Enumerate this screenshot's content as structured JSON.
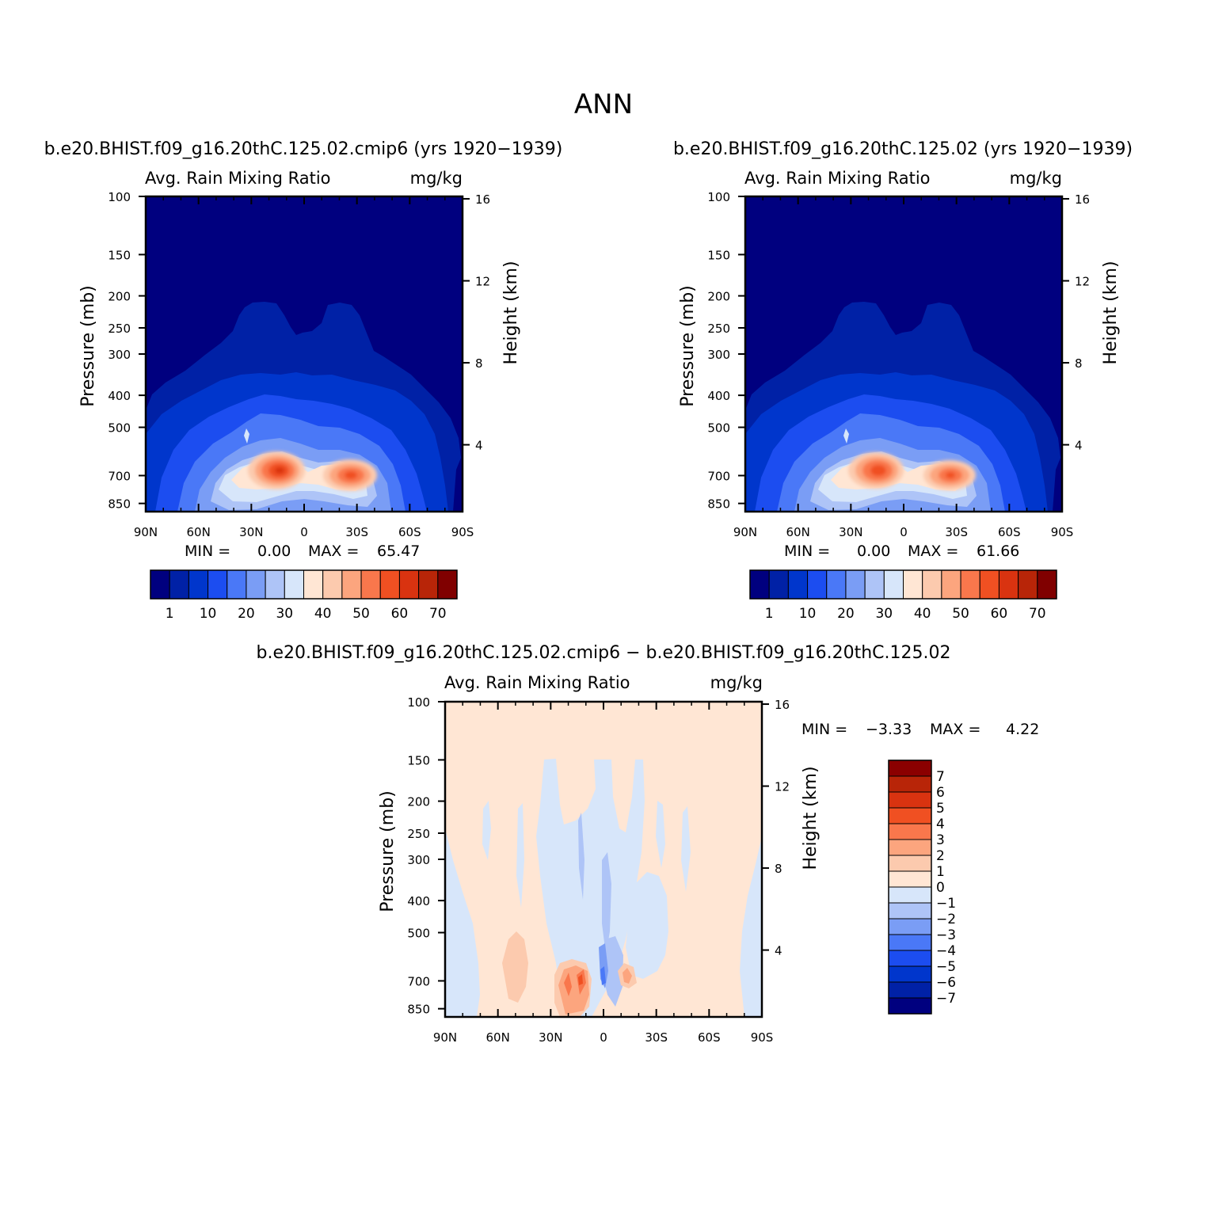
{
  "figure_title": "ANN",
  "colorbar_main": {
    "colors": [
      "#00007F",
      "#0021A6",
      "#0036CC",
      "#1C4DF0",
      "#4A78F7",
      "#7A9DF5",
      "#AEC4F7",
      "#D7E6FA",
      "#FFE6D4",
      "#FCCAAE",
      "#FCA57E",
      "#F9774C",
      "#F05022",
      "#D93310",
      "#B82508",
      "#800000"
    ],
    "labels": [
      "1",
      "10",
      "20",
      "30",
      "40",
      "50",
      "60",
      "70"
    ]
  },
  "colorbar_diff": {
    "colors": [
      "#00007F",
      "#0021A6",
      "#0036CC",
      "#1C4DF0",
      "#4A78F7",
      "#7A9DF5",
      "#AEC4F7",
      "#D7E6FA",
      "#FFE6D4",
      "#FCCAAE",
      "#FCA57E",
      "#F9774C",
      "#F05022",
      "#D93310",
      "#B82508",
      "#8B0000"
    ],
    "labels": [
      "7",
      "6",
      "5",
      "4",
      "3",
      "2",
      "1",
      "0",
      "−1",
      "−2",
      "−3",
      "−4",
      "−5",
      "−6",
      "−7"
    ]
  },
  "chart_data": [
    {
      "type": "heatmap",
      "title": "b.e20.BHIST.f09_g16.20thC.125.02.cmip6 (yrs 1920−1939)",
      "left_label": "Avg. Rain Mixing Ratio",
      "right_label": "mg/kg",
      "xlabel": "",
      "ylabel": "Pressure (mb)",
      "y2label": "Height (km)",
      "x_ticks": [
        "90N",
        "60N",
        "30N",
        "0",
        "30S",
        "60S",
        "90S"
      ],
      "y_ticks": [
        "100",
        "150",
        "200",
        "250",
        "300",
        "400",
        "500",
        "700",
        "850"
      ],
      "y2_ticks": [
        "16",
        "12",
        "8",
        "4"
      ],
      "stats": {
        "min_label": "MIN =",
        "min": "0.00",
        "max_label": "MAX =",
        "max": "65.47"
      },
      "peaks": [
        {
          "lat": 15,
          "pressure": 700,
          "value": 65.47
        },
        {
          "lat": -27,
          "pressure": 700,
          "value": 50
        }
      ]
    },
    {
      "type": "heatmap",
      "title": "b.e20.BHIST.f09_g16.20thC.125.02 (yrs 1920−1939)",
      "left_label": "Avg. Rain Mixing Ratio",
      "right_label": "mg/kg",
      "xlabel": "",
      "ylabel": "Pressure (mb)",
      "y2label": "Height (km)",
      "x_ticks": [
        "90N",
        "60N",
        "30N",
        "0",
        "30S",
        "60S",
        "90S"
      ],
      "y_ticks": [
        "100",
        "150",
        "200",
        "250",
        "300",
        "400",
        "500",
        "700",
        "850"
      ],
      "y2_ticks": [
        "16",
        "12",
        "8",
        "4"
      ],
      "stats": {
        "min_label": "MIN =",
        "min": "0.00",
        "max_label": "MAX =",
        "max": "61.66"
      },
      "peaks": [
        {
          "lat": 15,
          "pressure": 700,
          "value": 61.66
        },
        {
          "lat": -27,
          "pressure": 700,
          "value": 48
        }
      ]
    },
    {
      "type": "heatmap",
      "title": "b.e20.BHIST.f09_g16.20thC.125.02.cmip6 − b.e20.BHIST.f09_g16.20thC.125.02",
      "left_label": "Avg. Rain Mixing Ratio",
      "right_label": "mg/kg",
      "xlabel": "",
      "ylabel": "Pressure (mb)",
      "y2label": "Height (km)",
      "x_ticks": [
        "90N",
        "60N",
        "30N",
        "0",
        "30S",
        "60S",
        "90S"
      ],
      "y_ticks": [
        "100",
        "150",
        "200",
        "250",
        "300",
        "400",
        "500",
        "700",
        "850"
      ],
      "y2_ticks": [
        "16",
        "12",
        "8",
        "4"
      ],
      "stats": {
        "min_label": "MIN =",
        "min": "−3.33",
        "max_label": "MAX =",
        "max": "4.22"
      }
    }
  ]
}
